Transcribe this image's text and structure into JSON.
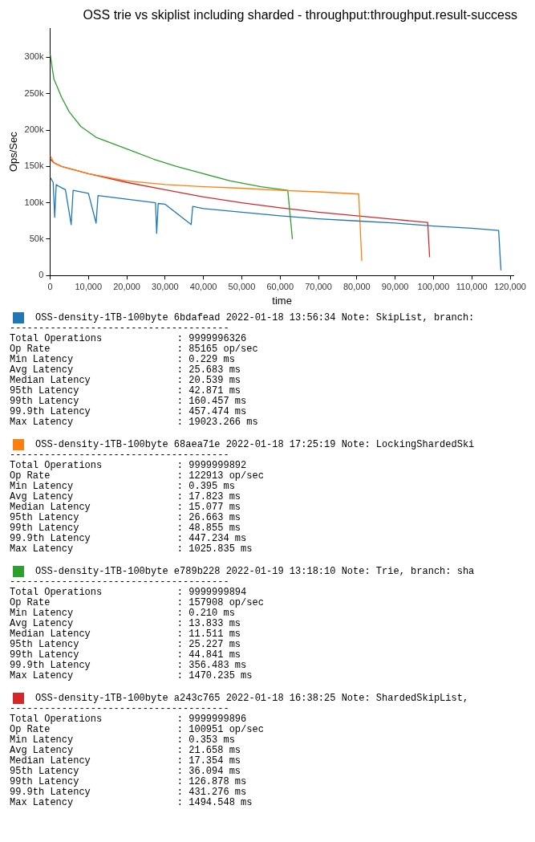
{
  "chart_data": {
    "type": "line",
    "title": "OSS trie vs skiplist including sharded - throughput:throughput.result-success",
    "xlabel": "time",
    "ylabel": "Ops/Sec",
    "xlim": [
      0,
      121000
    ],
    "ylim": [
      0,
      340000
    ],
    "xticks": [
      0,
      {
        "value": 10000,
        "label": "10,000"
      },
      {
        "value": 20000,
        "label": "20,000"
      },
      {
        "value": 30000,
        "label": "30,000"
      },
      {
        "value": 40000,
        "label": "40,000"
      },
      {
        "value": 50000,
        "label": "50,000"
      },
      {
        "value": 60000,
        "label": "60,000"
      },
      {
        "value": 70000,
        "label": "70,000"
      },
      {
        "value": 80000,
        "label": "80,000"
      },
      {
        "value": 90000,
        "label": "90,000"
      },
      {
        "value": 100000,
        "label": "100,000"
      },
      {
        "value": 110000,
        "label": "110,000"
      },
      {
        "value": 120000,
        "label": "120,000"
      }
    ],
    "yticks": [
      0,
      {
        "value": 50000,
        "label": "50k"
      },
      {
        "value": 100000,
        "label": "100k"
      },
      {
        "value": 150000,
        "label": "150k"
      },
      {
        "value": 200000,
        "label": "200k"
      },
      {
        "value": 250000,
        "label": "250k"
      },
      {
        "value": 300000,
        "label": "300k"
      }
    ],
    "grid": false,
    "legend": "bottom",
    "marker": "none",
    "line_style": "solid",
    "series": [
      {
        "name": "OSS-density-1TB-100byte 6bdafead 2022-01-18 13:56:34 Note: SkipList, branch:",
        "color": "#1f77b4",
        "x": [
          0,
          800,
          1200,
          1600,
          2500,
          4000,
          5500,
          6000,
          10000,
          12000,
          12500,
          20000,
          27500,
          27800,
          28200,
          30000,
          36800,
          37200,
          40000,
          50000,
          60000,
          70000,
          80000,
          90000,
          100000,
          110000,
          117000,
          117600
        ],
        "values": [
          135000,
          128000,
          80000,
          125000,
          122000,
          118000,
          70000,
          117000,
          113000,
          72000,
          110000,
          105000,
          100000,
          58000,
          99000,
          98000,
          70000,
          95000,
          92000,
          87000,
          82000,
          78000,
          75000,
          72000,
          68000,
          65000,
          62000,
          7000
        ]
      },
      {
        "name": "OSS-density-1TB-100byte 68aea71e 2022-01-18 17:25:19 Note: LockingShardedSki",
        "color": "#ff7f0e",
        "x": [
          0,
          1000,
          3000,
          10000,
          20000,
          30000,
          40000,
          50000,
          60000,
          70000,
          80500,
          81300
        ],
        "values": [
          165000,
          155000,
          150000,
          140000,
          130000,
          125000,
          122000,
          120000,
          117000,
          115000,
          112000,
          20000
        ]
      },
      {
        "name": "OSS-density-1TB-100byte e789b228 2022-01-19 13:18:10 Note: Trie, branch: sha",
        "color": "#2ca02c",
        "x": [
          0,
          1000,
          3000,
          5000,
          8000,
          12000,
          17000,
          22000,
          27000,
          33000,
          40000,
          47000,
          55000,
          62000,
          63200
        ],
        "values": [
          305000,
          270000,
          245000,
          225000,
          205000,
          190000,
          180000,
          170000,
          160000,
          150000,
          140000,
          130000,
          122000,
          117000,
          50000
        ]
      },
      {
        "name": "OSS-density-1TB-100byte a243c765 2022-01-18 16:38:25 Note: ShardedSkipList,",
        "color": "#d62728",
        "x": [
          0,
          1000,
          3000,
          10000,
          20000,
          30000,
          40000,
          50000,
          60000,
          70000,
          80000,
          90000,
          98500,
          99000
        ],
        "values": [
          160000,
          155000,
          150000,
          140000,
          128000,
          118000,
          108000,
          100000,
          93000,
          87000,
          82000,
          77000,
          73000,
          25000
        ]
      }
    ],
    "annotations": [
      "--------------------------------------\nTotal Operations             : 9999996326\nOp Rate                      : 85165 op/sec\nMin Latency                  : 0.229 ms\nAvg Latency                  : 25.683 ms\nMedian Latency               : 20.539 ms\n95th Latency                 : 42.871 ms\n99th Latency                 : 160.457 ms\n99.9th Latency               : 457.474 ms\nMax Latency                  : 19023.266 ms",
      "--------------------------------------\nTotal Operations             : 9999999892\nOp Rate                      : 122913 op/sec\nMin Latency                  : 0.395 ms\nAvg Latency                  : 17.823 ms\nMedian Latency               : 15.077 ms\n95th Latency                 : 26.663 ms\n99th Latency                 : 48.855 ms\n99.9th Latency               : 447.234 ms\nMax Latency                  : 1025.835 ms",
      "--------------------------------------\nTotal Operations             : 9999999894\nOp Rate                      : 157908 op/sec\nMin Latency                  : 0.210 ms\nAvg Latency                  : 13.833 ms\nMedian Latency               : 11.511 ms\n95th Latency                 : 25.227 ms\n99th Latency                 : 44.841 ms\n99.9th Latency               : 356.483 ms\nMax Latency                  : 1470.235 ms",
      "--------------------------------------\nTotal Operations             : 9999999896\nOp Rate                      : 100951 op/sec\nMin Latency                  : 0.353 ms\nAvg Latency                  : 21.658 ms\nMedian Latency               : 17.354 ms\n95th Latency                 : 36.094 ms\n99th Latency                 : 126.878 ms\n99.9th Latency               : 431.276 ms\nMax Latency                  : 1494.548 ms"
    ]
  }
}
